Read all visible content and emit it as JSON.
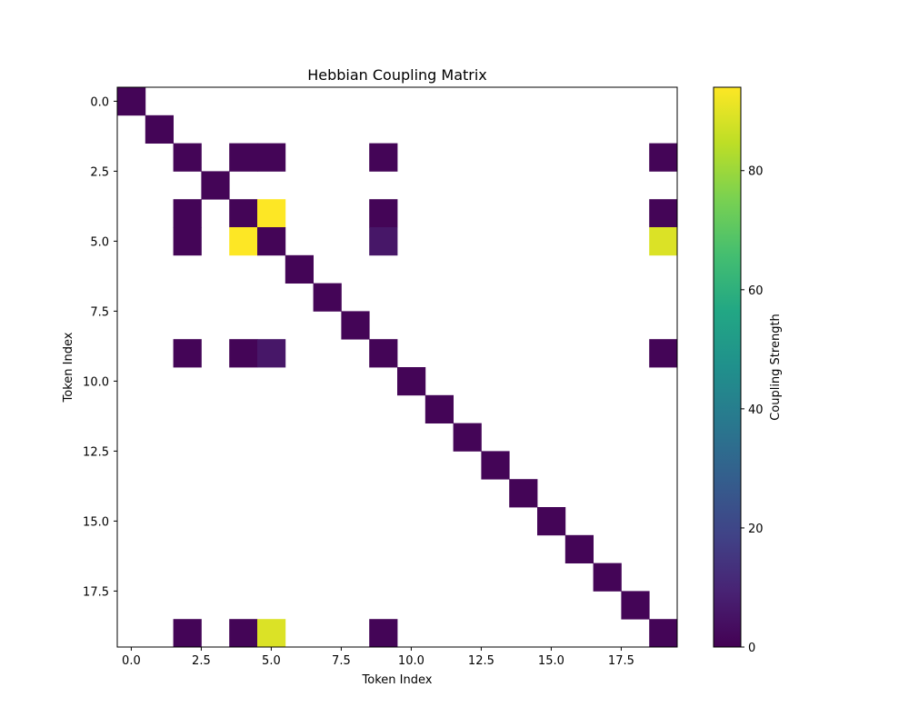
{
  "chart_data": {
    "type": "heatmap",
    "title": "Hebbian Coupling Matrix",
    "xlabel": "Token Index",
    "ylabel": "Token Index",
    "colorbar_label": "Coupling Strength",
    "colormap": "viridis",
    "size": 20,
    "vmin": 0,
    "vmax": 94,
    "empty_color": "#ffffff",
    "x_ticks": [
      0.0,
      2.5,
      5.0,
      7.5,
      10.0,
      12.5,
      15.0,
      17.5
    ],
    "x_tick_labels": [
      "0.0",
      "2.5",
      "5.0",
      "7.5",
      "10.0",
      "12.5",
      "15.0",
      "17.5"
    ],
    "y_ticks": [
      0.0,
      2.5,
      5.0,
      7.5,
      10.0,
      12.5,
      15.0,
      17.5
    ],
    "y_tick_labels": [
      "0.0",
      "2.5",
      "5.0",
      "7.5",
      "10.0",
      "12.5",
      "15.0",
      "17.5"
    ],
    "colorbar_ticks": [
      0,
      20,
      40,
      60,
      80
    ],
    "colorbar_tick_labels": [
      "0",
      "20",
      "40",
      "60",
      "80"
    ],
    "cells": [
      {
        "row": 0,
        "col": 0,
        "value": 1
      },
      {
        "row": 1,
        "col": 1,
        "value": 1
      },
      {
        "row": 2,
        "col": 2,
        "value": 1
      },
      {
        "row": 2,
        "col": 4,
        "value": 1
      },
      {
        "row": 2,
        "col": 5,
        "value": 1
      },
      {
        "row": 2,
        "col": 9,
        "value": 1
      },
      {
        "row": 2,
        "col": 19,
        "value": 1
      },
      {
        "row": 3,
        "col": 3,
        "value": 1
      },
      {
        "row": 4,
        "col": 2,
        "value": 1
      },
      {
        "row": 4,
        "col": 4,
        "value": 1
      },
      {
        "row": 4,
        "col": 5,
        "value": 94
      },
      {
        "row": 4,
        "col": 9,
        "value": 1
      },
      {
        "row": 4,
        "col": 19,
        "value": 1
      },
      {
        "row": 5,
        "col": 2,
        "value": 1
      },
      {
        "row": 5,
        "col": 4,
        "value": 94
      },
      {
        "row": 5,
        "col": 5,
        "value": 1
      },
      {
        "row": 5,
        "col": 9,
        "value": 6
      },
      {
        "row": 5,
        "col": 19,
        "value": 89
      },
      {
        "row": 6,
        "col": 6,
        "value": 1
      },
      {
        "row": 7,
        "col": 7,
        "value": 1
      },
      {
        "row": 8,
        "col": 8,
        "value": 1
      },
      {
        "row": 9,
        "col": 2,
        "value": 1
      },
      {
        "row": 9,
        "col": 4,
        "value": 1
      },
      {
        "row": 9,
        "col": 5,
        "value": 6
      },
      {
        "row": 9,
        "col": 9,
        "value": 1
      },
      {
        "row": 9,
        "col": 19,
        "value": 1
      },
      {
        "row": 10,
        "col": 10,
        "value": 1
      },
      {
        "row": 11,
        "col": 11,
        "value": 1
      },
      {
        "row": 12,
        "col": 12,
        "value": 1
      },
      {
        "row": 13,
        "col": 13,
        "value": 1
      },
      {
        "row": 14,
        "col": 14,
        "value": 1
      },
      {
        "row": 15,
        "col": 15,
        "value": 1
      },
      {
        "row": 16,
        "col": 16,
        "value": 1
      },
      {
        "row": 17,
        "col": 17,
        "value": 1
      },
      {
        "row": 18,
        "col": 18,
        "value": 1
      },
      {
        "row": 19,
        "col": 2,
        "value": 1
      },
      {
        "row": 19,
        "col": 4,
        "value": 1
      },
      {
        "row": 19,
        "col": 5,
        "value": 89
      },
      {
        "row": 19,
        "col": 9,
        "value": 1
      },
      {
        "row": 19,
        "col": 19,
        "value": 1
      }
    ]
  }
}
